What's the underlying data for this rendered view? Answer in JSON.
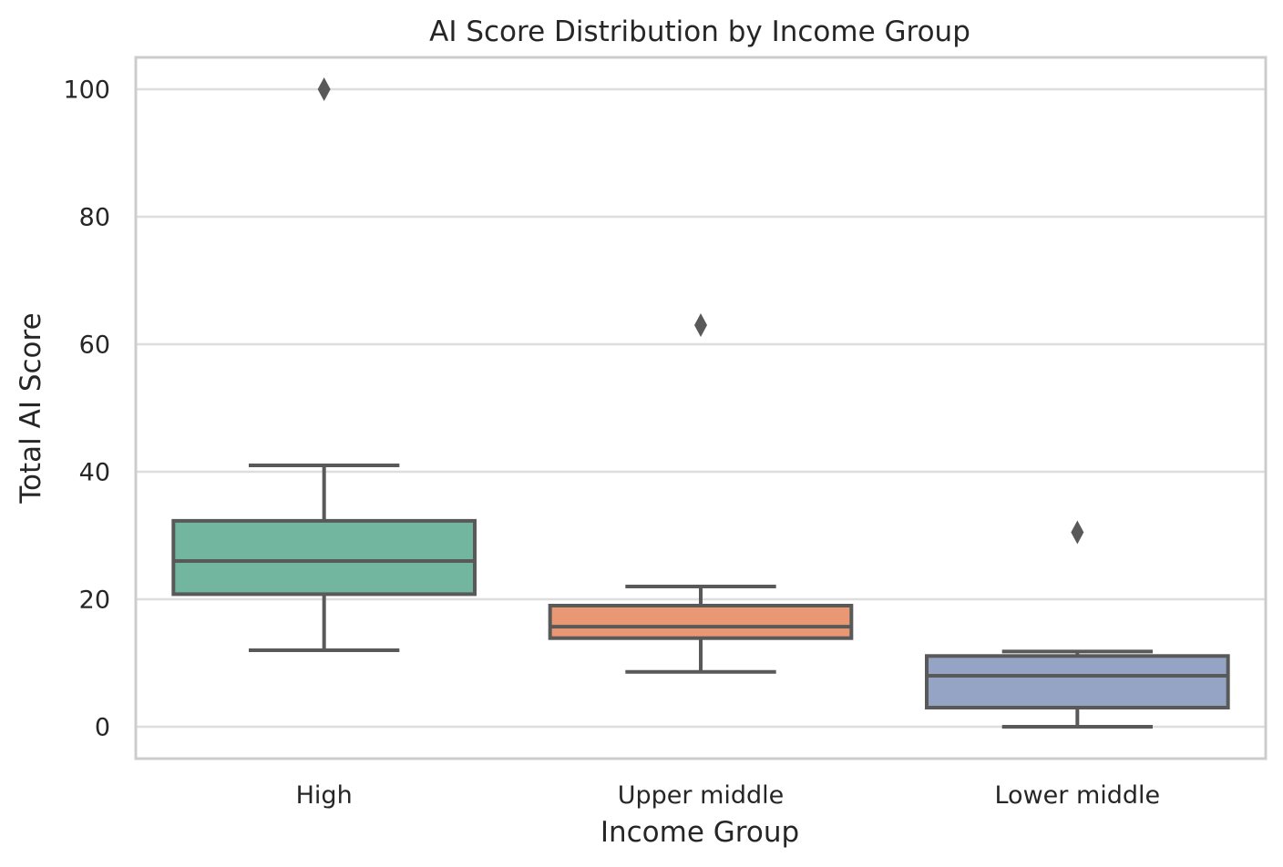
{
  "chart_data": {
    "type": "box",
    "title": "AI Score Distribution by Income Group",
    "xlabel": "Income Group",
    "ylabel": "Total AI Score",
    "ylim": [
      -5,
      105
    ],
    "yticks": [
      0,
      20,
      40,
      60,
      80,
      100
    ],
    "grid": true,
    "categories": [
      "High",
      "Upper middle",
      "Lower middle"
    ],
    "colors": [
      "#73b69f",
      "#ea9874",
      "#95a4c5"
    ],
    "boxes": [
      {
        "category": "High",
        "whisker_low": 12,
        "q1": 20.8,
        "median": 26,
        "q3": 32.3,
        "whisker_high": 41,
        "outliers": [
          100
        ]
      },
      {
        "category": "Upper middle",
        "whisker_low": 8.6,
        "q1": 13.9,
        "median": 15.7,
        "q3": 19,
        "whisker_high": 22,
        "outliers": [
          63
        ]
      },
      {
        "category": "Lower middle",
        "whisker_low": 0,
        "q1": 3,
        "median": 8,
        "q3": 11.1,
        "whisker_high": 11.8,
        "outliers": [
          30.5
        ]
      }
    ]
  }
}
